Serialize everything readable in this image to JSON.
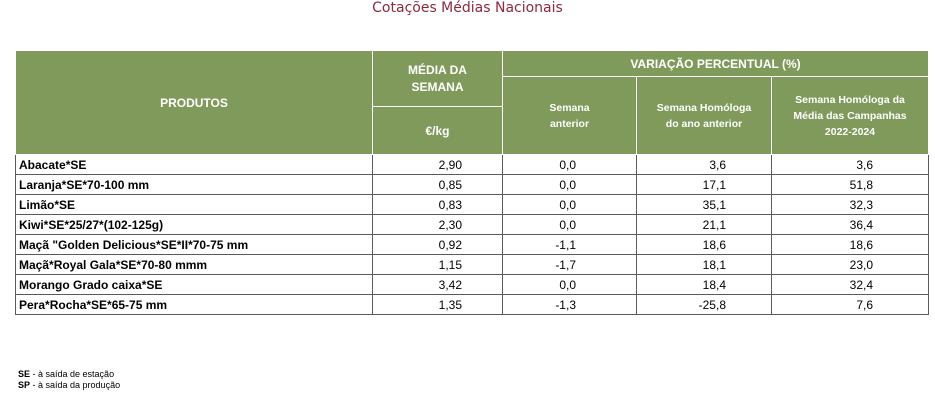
{
  "title": "Cotações Médias Nacionais",
  "header": {
    "produtos": "PRODUTOS",
    "media_line1": "MÉDIA DA",
    "media_line2": "SEMANA",
    "unit": "€/kg",
    "variacao": "VARIAÇÃO PERCENTUAL (%)",
    "sub1_line1": "Semana",
    "sub1_line2": "anterior",
    "sub2_line1": "Semana Homóloga",
    "sub2_line2": "do ano anterior",
    "sub3_line1": "Semana Homóloga da",
    "sub3_line2": "Média das Campanhas",
    "sub3_line3": "2022-2024"
  },
  "chart_data": {
    "type": "table",
    "title": "Cotações Médias Nacionais",
    "columns": [
      "PRODUTOS",
      "MÉDIA DA SEMANA €/kg",
      "Semana anterior",
      "Semana Homóloga do ano anterior",
      "Semana Homóloga da Média das Campanhas 2022-2024"
    ],
    "rows": [
      [
        "Abacate*SE",
        "2,90",
        "0,0",
        "3,6",
        "3,6"
      ],
      [
        "Laranja*SE*70-100 mm",
        "0,85",
        "0,0",
        "17,1",
        "51,8"
      ],
      [
        "Limão*SE",
        "0,83",
        "0,0",
        "35,1",
        "32,3"
      ],
      [
        "Kiwi*SE*25/27*(102-125g)",
        "2,30",
        "0,0",
        "21,1",
        "36,4"
      ],
      [
        "Maçã \"Golden Delicious*SE*II*70-75 mm",
        "0,92",
        "-1,1",
        "18,6",
        "18,6"
      ],
      [
        "Maçã*Royal Gala*SE*70-80 mmm",
        "1,15",
        "-1,7",
        "18,1",
        "23,0"
      ],
      [
        "Morango Grado caixa*SE",
        "3,42",
        "0,0",
        "18,4",
        "32,4"
      ],
      [
        "Pera*Rocha*SE*65-75 mm",
        "1,35",
        "-1,3",
        "-25,8",
        "7,6"
      ]
    ]
  },
  "footnotes": [
    {
      "code": "SE",
      "text": " - à saída de estação"
    },
    {
      "code": "SP",
      "text": " - à saída da produção"
    }
  ],
  "colors": {
    "header_bg": "#7f9a5b",
    "title": "#8b2a3f"
  }
}
